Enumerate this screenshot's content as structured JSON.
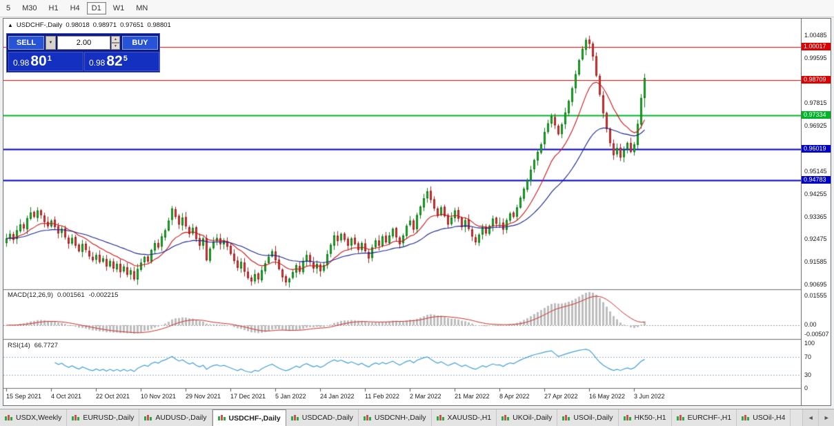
{
  "toolbar": {
    "timeframes": [
      {
        "label": "5",
        "active": false
      },
      {
        "label": "M30",
        "active": false
      },
      {
        "label": "H1",
        "active": false
      },
      {
        "label": "H4",
        "active": false
      },
      {
        "label": "D1",
        "active": true
      },
      {
        "label": "W1",
        "active": false
      },
      {
        "label": "MN",
        "active": false
      }
    ]
  },
  "chart": {
    "header": {
      "collapse_arrow": "▲",
      "symbol": "USDCHF-,Daily",
      "open": "0.98018",
      "high": "0.98971",
      "low": "0.97651",
      "close": "0.98801"
    },
    "trade_panel": {
      "sell_label": "SELL",
      "buy_label": "BUY",
      "volume": "2.00",
      "lot_dropdown_icon": "▼",
      "spinner_up": "▲",
      "spinner_down": "▼",
      "sell_price": {
        "prefix": "0.98",
        "big": "80",
        "sup": "1"
      },
      "buy_price": {
        "prefix": "0.98",
        "big": "82",
        "sup": "5"
      }
    }
  },
  "chart_data": {
    "type": "candlestick",
    "symbol": "USDCHF",
    "timeframe": "Daily",
    "ohlc_current": {
      "open": 0.98018,
      "high": 0.98971,
      "low": 0.97651,
      "close": 0.98801
    },
    "closes": [
      0.925,
      0.9268,
      0.9245,
      0.9282,
      0.9305,
      0.929,
      0.933,
      0.9352,
      0.9335,
      0.936,
      0.9342,
      0.9315,
      0.9298,
      0.932,
      0.9295,
      0.927,
      0.9288,
      0.9255,
      0.923,
      0.9252,
      0.9222,
      0.92,
      0.9228,
      0.9205,
      0.918,
      0.9165,
      0.9185,
      0.9158,
      0.9172,
      0.914,
      0.9162,
      0.9132,
      0.915,
      0.9118,
      0.914,
      0.9108,
      0.9125,
      0.909,
      0.913,
      0.9155,
      0.9178,
      0.916,
      0.9205,
      0.9232,
      0.9215,
      0.9258,
      0.9282,
      0.932,
      0.9368,
      0.9335,
      0.9305,
      0.9332,
      0.9298,
      0.9268,
      0.9292,
      0.9248,
      0.9222,
      0.925,
      0.9165,
      0.921,
      0.9238,
      0.9252,
      0.9228,
      0.9242,
      0.9218,
      0.919,
      0.9162,
      0.9135,
      0.9158,
      0.912,
      0.9095,
      0.9082,
      0.911,
      0.909,
      0.9125,
      0.9152,
      0.9178,
      0.92,
      0.9165,
      0.913,
      0.9098,
      0.9078,
      0.9092,
      0.9118,
      0.9145,
      0.912,
      0.9162,
      0.9185,
      0.9158,
      0.9132,
      0.915,
      0.9122,
      0.9145,
      0.9188,
      0.9225,
      0.9262,
      0.924,
      0.9268,
      0.9245,
      0.9222,
      0.925,
      0.9228,
      0.9205,
      0.9232,
      0.92,
      0.9172,
      0.9215,
      0.9242,
      0.9222,
      0.9258,
      0.9235,
      0.9262,
      0.9288,
      0.9255,
      0.9228,
      0.9262,
      0.93,
      0.932,
      0.9285,
      0.9342,
      0.9375,
      0.9408,
      0.9435,
      0.9402,
      0.9368,
      0.934,
      0.9372,
      0.9338,
      0.9305,
      0.9332,
      0.936,
      0.9328,
      0.9295,
      0.9322,
      0.9288,
      0.9258,
      0.9235,
      0.9265,
      0.9295,
      0.927,
      0.93,
      0.9328,
      0.9308,
      0.9312,
      0.9285,
      0.9322,
      0.9348,
      0.9335,
      0.9372,
      0.941,
      0.9445,
      0.948,
      0.952,
      0.9558,
      0.959,
      0.962,
      0.9668,
      0.9702,
      0.973,
      0.9695,
      0.966,
      0.9698,
      0.9745,
      0.979,
      0.984,
      0.9895,
      0.995,
      0.9995,
      1.003,
      1.0015,
      0.9965,
      0.989,
      0.9815,
      0.9742,
      0.968,
      0.9625,
      0.9578,
      0.9605,
      0.9568,
      0.9598,
      0.9625,
      0.959,
      0.962,
      0.97,
      0.9802,
      0.98801
    ],
    "last_candle": {
      "open": 0.98018,
      "high": 0.98971,
      "low": 0.97651,
      "close": 0.98801
    },
    "y_ticks": [
      1.00485,
      0.99595,
      0.98705,
      0.97815,
      0.96925,
      0.96035,
      0.95145,
      0.94255,
      0.93365,
      0.92475,
      0.91585,
      0.90695
    ],
    "x_labels": [
      "15 Sep 2021",
      "4 Oct 2021",
      "22 Oct 2021",
      "10 Nov 2021",
      "29 Nov 2021",
      "17 Dec 2021",
      "5 Jan 2022",
      "24 Jan 2022",
      "11 Feb 2022",
      "2 Mar 2022",
      "21 Mar 2022",
      "8 Apr 2022",
      "27 Apr 2022",
      "16 May 2022",
      "3 Jun 2022"
    ],
    "hlines": [
      {
        "price": 1.00017,
        "color": "#dd0000",
        "width": 1
      },
      {
        "price": 0.98709,
        "color": "#dd0000",
        "width": 1
      },
      {
        "price": 0.97334,
        "color": "#00b428",
        "width": 2
      },
      {
        "price": 0.96019,
        "color": "#0000cc",
        "width": 2
      },
      {
        "price": 0.94783,
        "color": "#0000cc",
        "width": 2
      }
    ],
    "moving_averages": [
      {
        "period": 13,
        "color": "#cc1111"
      },
      {
        "period": 34,
        "color": "#13208f"
      }
    ],
    "macd": {
      "label": "MACD(12,26,9)",
      "main_value": "0.001561",
      "signal_value": "-0.002215",
      "axis_labels": [
        "0.01555",
        "0.00",
        "-0.00507"
      ],
      "histogram_color": "#bdbdbd",
      "signal_color": "#cc2a2a"
    },
    "rsi": {
      "label": "RSI(14)",
      "value": "66.7727",
      "axis_labels": [
        "100",
        "70",
        "30",
        "0"
      ],
      "guide_levels": [
        70,
        30
      ],
      "line_color": "#3f9fd8"
    }
  },
  "tabs": {
    "items": [
      {
        "label": "USDX,Weekly",
        "active": false
      },
      {
        "label": "EURUSD-,Daily",
        "active": false
      },
      {
        "label": "AUDUSD-,Daily",
        "active": false
      },
      {
        "label": "USDCHF-,Daily",
        "active": true
      },
      {
        "label": "USDCAD-,Daily",
        "active": false
      },
      {
        "label": "USDCNH-,Daily",
        "active": false
      },
      {
        "label": "XAUUSD-,H1",
        "active": false
      },
      {
        "label": "UKOil-,Daily",
        "active": false
      },
      {
        "label": "USOil-,Daily",
        "active": false
      },
      {
        "label": "HK50-,H1",
        "active": false
      },
      {
        "label": "EURCHF-,H1",
        "active": false
      },
      {
        "label": "USOil-,H4",
        "active": false
      }
    ],
    "prev_icon": "◄",
    "next_icon": "►"
  }
}
